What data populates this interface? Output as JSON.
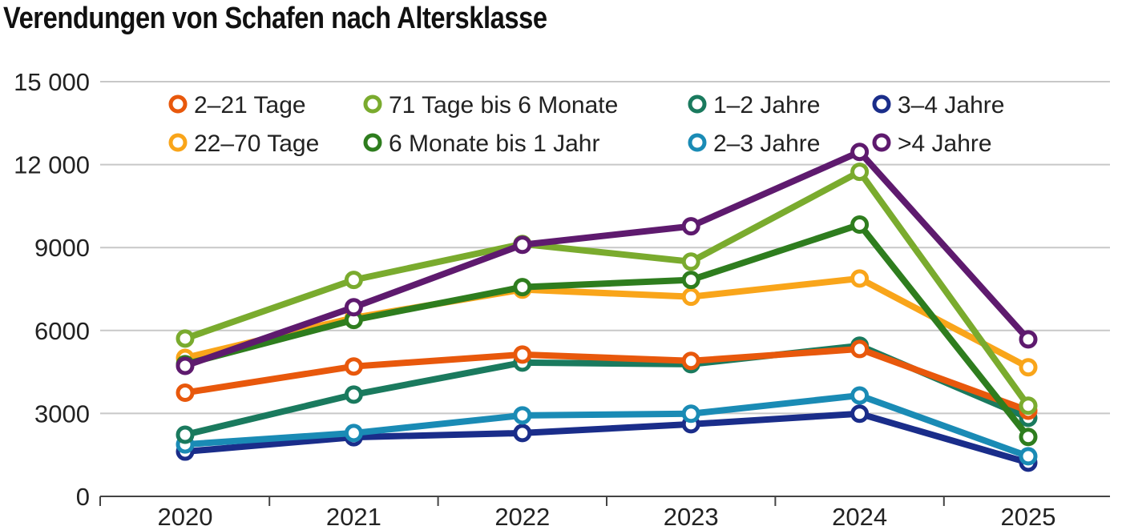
{
  "chart_data": {
    "type": "line",
    "title": "Verendungen von Schafen nach Altersklasse",
    "xlabel": "",
    "ylabel": "",
    "x": [
      "2020",
      "2021",
      "2022",
      "2023",
      "2024",
      "2025"
    ],
    "ylim": [
      0,
      15000
    ],
    "yticks": [
      0,
      3000,
      6000,
      9000,
      12000,
      15000
    ],
    "ytick_labels": [
      "0",
      "3000",
      "6000",
      "9000",
      "12 000",
      "15 000"
    ],
    "grid": "horizontal",
    "legend_position": "top",
    "series": [
      {
        "name": "2–21 Tage",
        "color": "#e8580c",
        "values": [
          3750,
          4700,
          5130,
          4900,
          5330,
          3100
        ]
      },
      {
        "name": "22–70 Tage",
        "color": "#f9a51a",
        "values": [
          5010,
          6460,
          7480,
          7220,
          7880,
          4670
        ]
      },
      {
        "name": "71 Tage bis 6 Monate",
        "color": "#7aab2e",
        "values": [
          5710,
          7830,
          9130,
          8490,
          11740,
          3280
        ]
      },
      {
        "name": "6 Monate bis 1 Jahr",
        "color": "#2e7d1e",
        "values": [
          4780,
          6380,
          7570,
          7830,
          9830,
          2150
        ]
      },
      {
        "name": "1–2 Jahre",
        "color": "#1a7a5e",
        "values": [
          2230,
          3680,
          4840,
          4780,
          5450,
          2840
        ]
      },
      {
        "name": "2–3 Jahre",
        "color": "#1a8bb5",
        "values": [
          1880,
          2290,
          2930,
          2990,
          3650,
          1450
        ]
      },
      {
        "name": "3–4 Jahre",
        "color": "#1a2d8a",
        "values": [
          1620,
          2140,
          2290,
          2610,
          2990,
          1220
        ]
      },
      {
        "name": ">4 Jahre",
        "color": "#5e1a6e",
        "values": [
          4720,
          6840,
          9100,
          9770,
          12460,
          5680
        ]
      }
    ]
  }
}
